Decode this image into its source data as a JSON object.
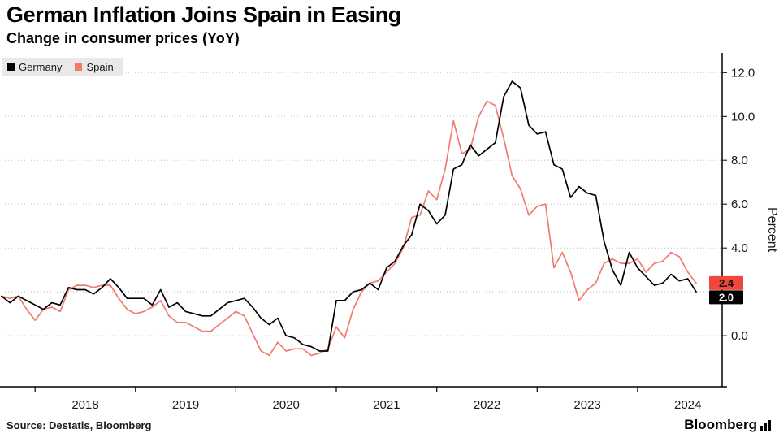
{
  "header": {
    "title": "German Inflation Joins Spain in Easing",
    "subtitle": "Change in consumer prices (YoY)"
  },
  "legend": {
    "items": [
      {
        "label": "Germany",
        "color": "#000000"
      },
      {
        "label": "Spain",
        "color": "#ef7b70"
      }
    ]
  },
  "chart_data": {
    "type": "line",
    "title": "German Inflation Joins Spain in Easing",
    "subtitle": "Change in consumer prices (YoY)",
    "x_start": "2017-09",
    "x_freq": "monthly",
    "x_tick_labels": [
      "2018",
      "2019",
      "2020",
      "2021",
      "2022",
      "2023",
      "2024"
    ],
    "ylabel": "Percent",
    "ylim": [
      -2.33,
      12.9
    ],
    "yticks": [
      0,
      2,
      4,
      6,
      8,
      10,
      12
    ],
    "ytick_labels": [
      "0.0",
      "2.0",
      "4.0",
      "6.0",
      "8.0",
      "10.0",
      "12.0"
    ],
    "grid": "horizontal-dotted",
    "legend_position": "top-left",
    "series": [
      {
        "name": "Germany",
        "color": "#000000",
        "end_label": "2.0",
        "end_label_bg": "#000000",
        "end_label_fg": "#ffffff",
        "values": [
          1.8,
          1.5,
          1.8,
          1.6,
          1.4,
          1.2,
          1.5,
          1.4,
          2.2,
          2.1,
          2.1,
          1.9,
          2.2,
          2.6,
          2.2,
          1.7,
          1.7,
          1.7,
          1.4,
          2.1,
          1.3,
          1.5,
          1.1,
          1.0,
          0.9,
          0.9,
          1.2,
          1.5,
          1.6,
          1.7,
          1.3,
          0.8,
          0.5,
          0.8,
          0.0,
          -0.1,
          -0.4,
          -0.5,
          -0.7,
          -0.7,
          1.6,
          1.6,
          2.0,
          2.1,
          2.4,
          2.1,
          3.1,
          3.4,
          4.1,
          4.6,
          6.0,
          5.7,
          5.1,
          5.5,
          7.6,
          7.8,
          8.7,
          8.2,
          8.5,
          8.8,
          10.9,
          11.6,
          11.3,
          9.6,
          9.2,
          9.3,
          7.8,
          7.6,
          6.3,
          6.8,
          6.5,
          6.4,
          4.3,
          3.0,
          2.3,
          3.8,
          3.1,
          2.7,
          2.3,
          2.4,
          2.8,
          2.5,
          2.6,
          2.0
        ]
      },
      {
        "name": "Spain",
        "color": "#ef7b70",
        "end_label": "2.4",
        "end_label_bg": "#f0473a",
        "end_label_fg": "#111111",
        "values": [
          1.8,
          1.7,
          1.8,
          1.2,
          0.7,
          1.2,
          1.3,
          1.1,
          2.1,
          2.3,
          2.3,
          2.2,
          2.3,
          2.3,
          1.7,
          1.2,
          1.0,
          1.1,
          1.3,
          1.6,
          0.9,
          0.6,
          0.6,
          0.4,
          0.2,
          0.2,
          0.5,
          0.8,
          1.1,
          0.9,
          0.1,
          -0.7,
          -0.9,
          -0.3,
          -0.7,
          -0.6,
          -0.6,
          -0.9,
          -0.8,
          -0.6,
          0.4,
          -0.1,
          1.2,
          2.0,
          2.4,
          2.5,
          2.9,
          3.3,
          4.0,
          5.4,
          5.5,
          6.6,
          6.2,
          7.6,
          9.8,
          8.3,
          8.5,
          10.0,
          10.7,
          10.5,
          9.0,
          7.3,
          6.7,
          5.5,
          5.9,
          6.0,
          3.1,
          3.8,
          2.9,
          1.6,
          2.1,
          2.4,
          3.3,
          3.5,
          3.3,
          3.3,
          3.5,
          2.9,
          3.3,
          3.4,
          3.8,
          3.6,
          2.9,
          2.4
        ]
      }
    ]
  },
  "footer": {
    "source": "Source: Destatis, Bloomberg",
    "brand": "Bloomberg"
  }
}
